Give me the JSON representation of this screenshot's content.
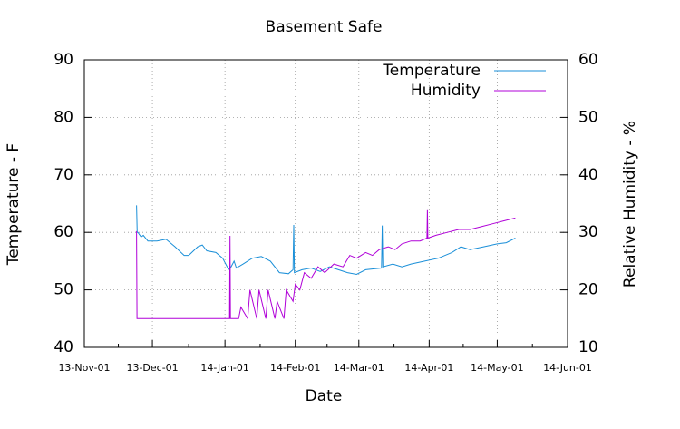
{
  "chart_data": {
    "type": "line",
    "title": "Basement Safe",
    "x_label": "Date",
    "y_label": "Temperature - F",
    "y2_label": "Relative Humidity - %",
    "xlim": [
      0,
      213
    ],
    "xticks": [
      {
        "value": 0,
        "label": "13-Nov-01"
      },
      {
        "value": 30,
        "label": "13-Dec-01"
      },
      {
        "value": 62,
        "label": "14-Jan-01"
      },
      {
        "value": 93,
        "label": "14-Feb-01"
      },
      {
        "value": 121,
        "label": "14-Mar-01"
      },
      {
        "value": 152,
        "label": "14-Apr-01"
      },
      {
        "value": 182,
        "label": "14-May-01"
      },
      {
        "value": 213,
        "label": "14-Jun-01"
      }
    ],
    "ylim": [
      40,
      90
    ],
    "yticks": [
      40,
      50,
      60,
      70,
      80,
      90
    ],
    "y2lim": [
      10,
      60
    ],
    "y2ticks": [
      10,
      20,
      30,
      40,
      50,
      60
    ],
    "grid": true,
    "legend": "top-right",
    "series": [
      {
        "name": "Temperature",
        "color": "#1a8fd8",
        "x": [
          23,
          23.3,
          23.6,
          25,
          26,
          28,
          32,
          36,
          40,
          44,
          46,
          50,
          52,
          54,
          58,
          61,
          63,
          64,
          66,
          67,
          70,
          74,
          78,
          82,
          86,
          90,
          92,
          92.3,
          92.6,
          96,
          100,
          104,
          108,
          112,
          116,
          120,
          124,
          131,
          131.3,
          131.6,
          136,
          140,
          144,
          150,
          156,
          162,
          166,
          170,
          176,
          182,
          186,
          190
        ],
        "values": [
          64.7,
          60,
          60,
          59.2,
          59.5,
          58.5,
          58.5,
          58.8,
          57.5,
          56,
          56,
          57.5,
          57.8,
          56.8,
          56.5,
          55.5,
          54,
          53.5,
          55,
          53.8,
          54.5,
          55.5,
          55.8,
          55,
          53,
          52.8,
          53.5,
          61.3,
          53,
          53.5,
          53.8,
          53.2,
          54,
          53.5,
          53,
          52.7,
          53.5,
          53.8,
          61.2,
          54,
          54.5,
          54,
          54.5,
          55,
          55.5,
          56.5,
          57.5,
          57,
          57.5,
          58,
          58.2,
          59
        ]
      },
      {
        "name": "Humidity",
        "color": "#b000d8",
        "axis": "y2",
        "x": [
          23,
          23.2,
          64,
          64.2,
          64.4,
          68,
          69,
          72,
          73,
          76,
          77,
          80,
          81,
          84,
          85,
          88,
          89,
          92,
          93,
          95,
          97,
          100,
          103,
          106,
          110,
          114,
          117,
          120,
          124,
          127,
          130,
          134,
          137,
          140,
          144,
          148,
          151,
          151.2,
          151.4,
          155,
          160,
          165,
          170,
          175,
          180,
          185,
          190
        ],
        "values": [
          30.2,
          15,
          15,
          29.4,
          15,
          15,
          17,
          15,
          20,
          15,
          20,
          15,
          20,
          15,
          18,
          15,
          20,
          18,
          21,
          20,
          23,
          22,
          24,
          23,
          24.5,
          24,
          26,
          25.5,
          26.5,
          26,
          27,
          27.5,
          27,
          28,
          28.5,
          28.5,
          29,
          34,
          29,
          29.5,
          30,
          30.5,
          30.5,
          31,
          31.5,
          32,
          32.5
        ]
      }
    ]
  }
}
